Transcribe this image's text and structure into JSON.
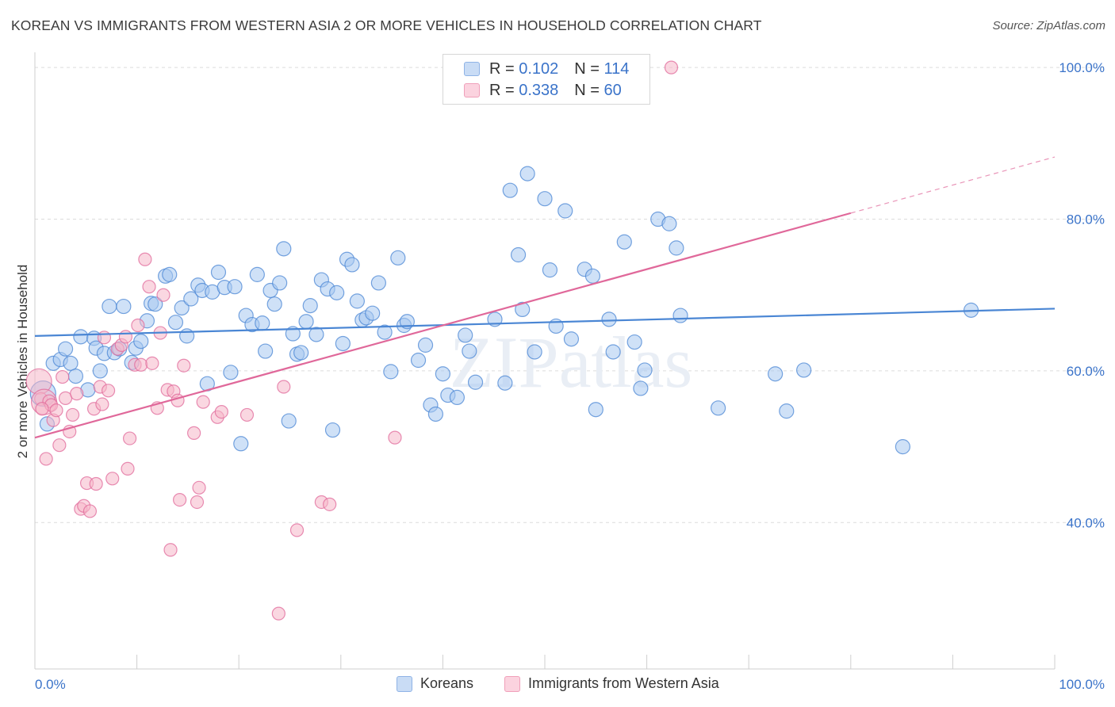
{
  "title": "KOREAN VS IMMIGRANTS FROM WESTERN ASIA 2 OR MORE VEHICLES IN HOUSEHOLD CORRELATION CHART",
  "source": "Source: ZipAtlas.com",
  "watermark": "ZIPatlas",
  "legend": {
    "r_label": "R =",
    "n_label": "N =",
    "rows": [
      {
        "r": "0.102",
        "n": "114",
        "color": "#a7c8f0"
      },
      {
        "r": "0.338",
        "n": "60",
        "color": "#f5b6c9"
      }
    ]
  },
  "bottom_legend": [
    "Koreans",
    "Immigrants from Western Asia"
  ],
  "x_ticks": {
    "left": "0.0%",
    "right": "100.0%"
  },
  "chart_data": {
    "type": "scatter",
    "title": "KOREAN VS IMMIGRANTS FROM WESTERN ASIA 2 OR MORE VEHICLES IN HOUSEHOLD CORRELATION CHART",
    "xlabel": "",
    "ylabel": "2 or more Vehicles in Household",
    "xlim": [
      0,
      100
    ],
    "ylim": [
      20,
      102
    ],
    "y_ticks": [
      {
        "value": 40,
        "label": "40.0%"
      },
      {
        "value": 60,
        "label": "60.0%"
      },
      {
        "value": 80,
        "label": "80.0%"
      },
      {
        "value": 100,
        "label": "100.0%"
      }
    ],
    "grid": true,
    "series": [
      {
        "name": "Koreans",
        "color": "#4a86d4",
        "fill": "#a7c8f0",
        "trend": {
          "x0": 0,
          "y0": 64.6,
          "x1": 100,
          "y1": 68.2,
          "dashed_from": null
        },
        "points": [
          [
            0.8,
            57.0
          ],
          [
            1.2,
            53.0
          ],
          [
            1.8,
            61.0
          ],
          [
            2.5,
            61.5
          ],
          [
            3.0,
            62.9
          ],
          [
            3.5,
            61.0
          ],
          [
            4.0,
            59.3
          ],
          [
            4.5,
            64.5
          ],
          [
            5.2,
            57.5
          ],
          [
            5.8,
            64.3
          ],
          [
            6.0,
            63.0
          ],
          [
            6.4,
            60.0
          ],
          [
            6.8,
            62.3
          ],
          [
            7.3,
            68.5
          ],
          [
            7.8,
            62.4
          ],
          [
            8.3,
            62.9
          ],
          [
            8.7,
            68.5
          ],
          [
            9.5,
            61.1
          ],
          [
            9.9,
            63.0
          ],
          [
            10.4,
            63.9
          ],
          [
            11.0,
            66.6
          ],
          [
            11.4,
            68.9
          ],
          [
            11.8,
            68.8
          ],
          [
            12.8,
            72.5
          ],
          [
            13.2,
            72.7
          ],
          [
            13.8,
            66.4
          ],
          [
            14.4,
            68.3
          ],
          [
            14.9,
            64.6
          ],
          [
            15.3,
            69.5
          ],
          [
            16.0,
            71.3
          ],
          [
            16.4,
            70.6
          ],
          [
            16.9,
            58.3
          ],
          [
            17.4,
            70.4
          ],
          [
            18.0,
            73.0
          ],
          [
            18.6,
            71.0
          ],
          [
            19.2,
            59.8
          ],
          [
            19.6,
            71.1
          ],
          [
            20.2,
            50.4
          ],
          [
            20.7,
            67.3
          ],
          [
            21.3,
            66.1
          ],
          [
            21.8,
            72.7
          ],
          [
            22.3,
            66.3
          ],
          [
            22.6,
            62.6
          ],
          [
            23.1,
            70.6
          ],
          [
            23.5,
            68.8
          ],
          [
            24.0,
            71.6
          ],
          [
            24.4,
            76.1
          ],
          [
            24.9,
            53.4
          ],
          [
            25.3,
            64.9
          ],
          [
            25.7,
            62.2
          ],
          [
            26.1,
            62.4
          ],
          [
            26.6,
            66.5
          ],
          [
            27.0,
            68.6
          ],
          [
            27.6,
            64.8
          ],
          [
            28.1,
            72.0
          ],
          [
            28.7,
            70.8
          ],
          [
            29.2,
            52.2
          ],
          [
            29.6,
            70.3
          ],
          [
            30.2,
            63.6
          ],
          [
            30.6,
            74.7
          ],
          [
            31.1,
            74.0
          ],
          [
            31.6,
            69.2
          ],
          [
            32.1,
            66.7
          ],
          [
            32.5,
            67.0
          ],
          [
            33.1,
            67.6
          ],
          [
            33.7,
            71.6
          ],
          [
            34.3,
            65.1
          ],
          [
            34.9,
            59.9
          ],
          [
            35.6,
            74.9
          ],
          [
            36.2,
            66.0
          ],
          [
            36.5,
            66.5
          ],
          [
            37.6,
            61.4
          ],
          [
            38.3,
            63.4
          ],
          [
            38.8,
            55.5
          ],
          [
            39.3,
            54.3
          ],
          [
            40.0,
            59.6
          ],
          [
            40.5,
            56.8
          ],
          [
            41.4,
            56.5
          ],
          [
            42.2,
            64.7
          ],
          [
            42.6,
            62.6
          ],
          [
            43.2,
            58.5
          ],
          [
            45.1,
            66.8
          ],
          [
            46.1,
            58.4
          ],
          [
            46.6,
            83.8
          ],
          [
            47.4,
            75.3
          ],
          [
            47.8,
            68.1
          ],
          [
            48.3,
            86.0
          ],
          [
            49.0,
            62.5
          ],
          [
            50.0,
            82.7
          ],
          [
            50.5,
            73.3
          ],
          [
            51.1,
            65.9
          ],
          [
            52.0,
            81.1
          ],
          [
            52.6,
            64.2
          ],
          [
            53.9,
            73.4
          ],
          [
            54.7,
            72.5
          ],
          [
            55.0,
            54.9
          ],
          [
            56.3,
            66.8
          ],
          [
            56.7,
            62.5
          ],
          [
            57.8,
            77.0
          ],
          [
            58.8,
            63.8
          ],
          [
            59.4,
            57.7
          ],
          [
            59.8,
            60.1
          ],
          [
            61.1,
            80.0
          ],
          [
            62.2,
            79.4
          ],
          [
            62.9,
            76.2
          ],
          [
            63.3,
            67.3
          ],
          [
            67.0,
            55.1
          ],
          [
            72.6,
            59.6
          ],
          [
            73.7,
            54.7
          ],
          [
            75.4,
            60.1
          ],
          [
            85.1,
            50.0
          ],
          [
            91.8,
            68.0
          ]
        ]
      },
      {
        "name": "Immigrants from Western Asia",
        "color": "#e0689a",
        "fill": "#f5b6c9",
        "trend": {
          "x0": 0,
          "y0": 51.2,
          "x1": 100,
          "y1": 88.2,
          "dashed_from": 80
        },
        "points": [
          [
            0.4,
            58.6
          ],
          [
            0.6,
            56.3
          ],
          [
            0.9,
            55.9
          ],
          [
            1.1,
            48.4
          ],
          [
            1.4,
            56.0
          ],
          [
            1.6,
            55.5
          ],
          [
            1.8,
            53.5
          ],
          [
            2.1,
            54.8
          ],
          [
            2.4,
            50.2
          ],
          [
            2.7,
            59.2
          ],
          [
            3.0,
            56.4
          ],
          [
            3.4,
            52.0
          ],
          [
            3.7,
            54.2
          ],
          [
            4.1,
            57.0
          ],
          [
            4.5,
            41.8
          ],
          [
            4.8,
            42.2
          ],
          [
            5.1,
            45.2
          ],
          [
            5.4,
            41.5
          ],
          [
            5.8,
            55.0
          ],
          [
            6.0,
            45.1
          ],
          [
            6.4,
            57.9
          ],
          [
            6.6,
            55.6
          ],
          [
            6.8,
            64.4
          ],
          [
            7.2,
            57.4
          ],
          [
            7.6,
            45.8
          ],
          [
            8.1,
            62.9
          ],
          [
            8.5,
            63.4
          ],
          [
            8.9,
            64.5
          ],
          [
            9.1,
            47.1
          ],
          [
            9.3,
            51.1
          ],
          [
            9.8,
            60.8
          ],
          [
            10.1,
            66.0
          ],
          [
            10.4,
            60.8
          ],
          [
            10.8,
            74.7
          ],
          [
            11.2,
            71.1
          ],
          [
            11.5,
            61.0
          ],
          [
            12.0,
            55.1
          ],
          [
            12.3,
            65.0
          ],
          [
            12.6,
            70.0
          ],
          [
            13.0,
            57.5
          ],
          [
            13.3,
            36.4
          ],
          [
            13.6,
            57.3
          ],
          [
            14.0,
            56.1
          ],
          [
            14.2,
            43.0
          ],
          [
            14.6,
            60.7
          ],
          [
            15.6,
            51.8
          ],
          [
            15.9,
            42.7
          ],
          [
            16.1,
            44.6
          ],
          [
            16.5,
            55.9
          ],
          [
            17.9,
            53.9
          ],
          [
            18.3,
            54.6
          ],
          [
            20.8,
            54.2
          ],
          [
            23.9,
            28.0
          ],
          [
            24.4,
            57.9
          ],
          [
            25.7,
            39.0
          ],
          [
            28.1,
            42.7
          ],
          [
            28.9,
            42.4
          ],
          [
            35.3,
            51.2
          ],
          [
            62.4,
            100.0
          ],
          [
            0.7,
            55.0
          ]
        ]
      }
    ]
  }
}
